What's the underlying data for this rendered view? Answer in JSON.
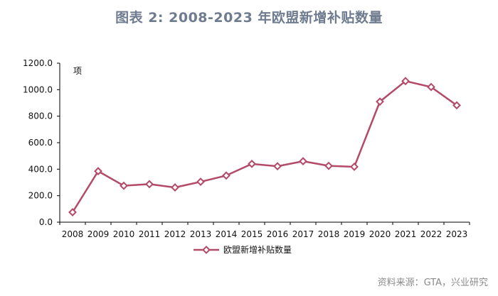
{
  "title": "图表 2:   2008-2023 年欧盟新增补贴数量",
  "source": "资料来源：GTA，兴业研究",
  "chart_data": {
    "type": "line",
    "title": "图表 2:   2008-2023 年欧盟新增补贴数量",
    "ylabel_unit": "项",
    "xlabel": "",
    "ylim": [
      0,
      1200
    ],
    "ytick_labels": [
      "0.0",
      "200.0",
      "400.0",
      "600.0",
      "800.0",
      "1000.0",
      "1200.0"
    ],
    "grid": false,
    "legend_position": "bottom-center",
    "categories": [
      "2008",
      "2009",
      "2010",
      "2011",
      "2012",
      "2013",
      "2014",
      "2015",
      "2016",
      "2017",
      "2018",
      "2019",
      "2020",
      "2021",
      "2022",
      "2023"
    ],
    "series": [
      {
        "name": "欧盟新增补贴数量",
        "color": "#b34a68",
        "marker": "diamond",
        "values": [
          75,
          385,
          275,
          287,
          262,
          305,
          352,
          440,
          422,
          460,
          425,
          418,
          910,
          1065,
          1020,
          882
        ]
      }
    ]
  }
}
